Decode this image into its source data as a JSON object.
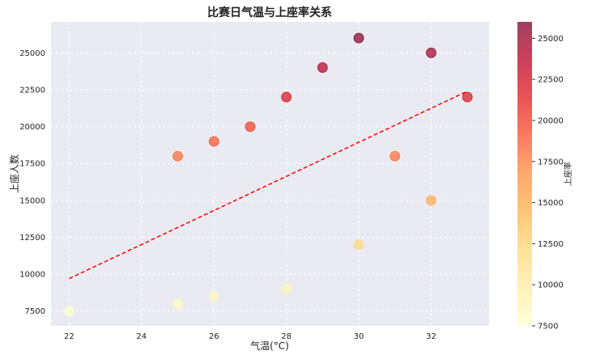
{
  "chart_data": {
    "type": "scatter",
    "title": "比赛日气温与上座率关系",
    "xlabel": "气温(°C)",
    "ylabel": "上座人数",
    "colorbar_label": "上座率",
    "xlim": [
      21.5,
      33.6
    ],
    "ylim": [
      6500,
      27100
    ],
    "x_ticks": [
      22,
      24,
      26,
      28,
      30,
      32
    ],
    "y_ticks": [
      7500,
      10000,
      12500,
      15000,
      17500,
      20000,
      22500,
      25000
    ],
    "colorbar_ticks": [
      7500,
      10000,
      12500,
      15000,
      17500,
      20000,
      22500,
      25000
    ],
    "color_range": [
      7500,
      26000
    ],
    "grid": true,
    "points": [
      {
        "x": 22,
        "y": 7500
      },
      {
        "x": 25,
        "y": 8000
      },
      {
        "x": 25,
        "y": 18000
      },
      {
        "x": 26,
        "y": 8500
      },
      {
        "x": 26,
        "y": 19000
      },
      {
        "x": 27,
        "y": 20000
      },
      {
        "x": 28,
        "y": 9000
      },
      {
        "x": 28,
        "y": 22000
      },
      {
        "x": 29,
        "y": 24000
      },
      {
        "x": 30,
        "y": 12000
      },
      {
        "x": 30,
        "y": 26000
      },
      {
        "x": 31,
        "y": 18000
      },
      {
        "x": 32,
        "y": 15000
      },
      {
        "x": 32,
        "y": 25000
      },
      {
        "x": 33,
        "y": 22000
      }
    ],
    "trendline": {
      "x": [
        22,
        33
      ],
      "y": [
        9700,
        22400
      ],
      "color": "#ff0000",
      "style": "dashed"
    },
    "colormap": [
      "#ffffcc",
      "#ffeda0",
      "#fed976",
      "#feb24c",
      "#fd8d3c",
      "#fc4e2a",
      "#e31a1c",
      "#bd0026",
      "#800026"
    ],
    "plot_background": "#eaeaf2",
    "point_opacity": 0.7
  }
}
